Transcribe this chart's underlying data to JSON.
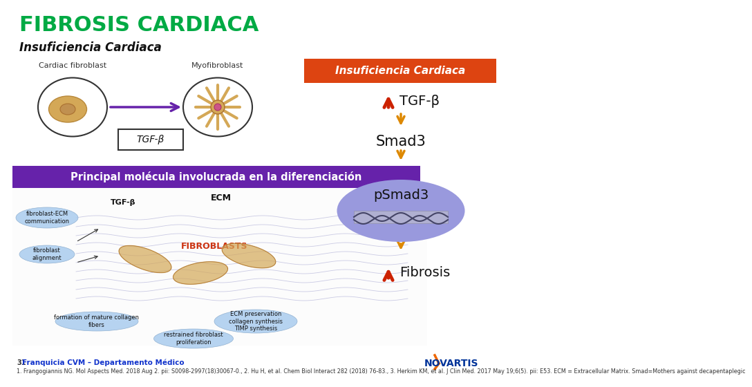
{
  "title": "FIBROSIS CARDIACA",
  "title_color": "#00aa44",
  "subtitle": "Insuficiencia Cardiaca",
  "subtitle_color": "#111111",
  "box_label": "Insuficiencia Cardiaca",
  "box_bg": "#dd4411",
  "box_text_color": "#ffffff",
  "tgf_label": "TGF-β",
  "smad3_label": "Smad3",
  "psmad3_label": "pSmad3",
  "fibrosis_label": "Fibrosis",
  "arrow_up_color": "#cc2200",
  "arrow_down_color": "#dd8800",
  "ellipse_color": "#9999dd",
  "tgf_box_label": "TGF-β",
  "principal_label": "Principal molécula involucrada en la diferenciación",
  "principal_bg": "#6622aa",
  "principal_text_color": "#ffffff",
  "footnote_num": "31",
  "footnote_text": "Franquicia CVM – Departamento Médico",
  "footnote_refs": "1. Frangogiannis NG. Mol Aspects Med. 2018 Aug 2. pii: S0098-2997(18)30067-0., 2. Hu H, et al. Chem Biol Interact 282 (2018) 76-83., 3. Herkim KM, et al. J Clin Med. 2017 May 19;6(5). pii: E53. ECM = Extracellular Matrix. Smad=Mothers against decapentaplegic",
  "bg_color": "#ffffff",
  "novartis_color": "#003399",
  "novartis_orange": "#ee6600"
}
